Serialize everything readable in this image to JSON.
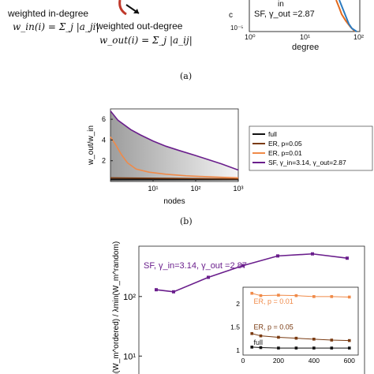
{
  "top": {
    "in_degree_label": "weighted in-degree",
    "in_degree_formula": "w_in(i) = Σ_j |a_ji|",
    "out_degree_label": "weighted out-degree",
    "out_degree_formula": "w_out(i) = Σ_j |a_ij|",
    "inset_legend": "SF, γ_out =2.87",
    "inset_in_fragment": "in",
    "inset_xlabel": "degree",
    "inset_xticks": [
      "10⁰",
      "10¹",
      "10²"
    ],
    "inset_yticks": [
      "10⁻⁵"
    ],
    "inset_ylabel_fragment": "c",
    "panel_label": "(a)"
  },
  "chart_data": [
    {
      "type": "line",
      "ylabel": "w_out/w_in",
      "xlabel": "nodes",
      "xscale": "log",
      "xlim": [
        1,
        1000
      ],
      "ylim": [
        0,
        7
      ],
      "xticks": [
        "10¹",
        "10²",
        "10³"
      ],
      "yticks": [
        "2",
        "4",
        "6"
      ],
      "legend_position": "right",
      "panel_label": "(b)",
      "series": [
        {
          "name": "full",
          "color": "#111111",
          "x": [
            1,
            1000
          ],
          "y": [
            0.2,
            0.2
          ]
        },
        {
          "name": "ER, p=0.05",
          "color": "#7a3b12",
          "x": [
            1,
            1000
          ],
          "y": [
            0.35,
            0.25
          ]
        },
        {
          "name": "ER, p=0.01",
          "color": "#f08a48",
          "x": [
            1,
            1.3,
            1.8,
            2.5,
            4,
            8,
            20,
            60,
            200,
            1000
          ],
          "y": [
            4.3,
            3.6,
            2.6,
            1.8,
            1.2,
            0.9,
            0.7,
            0.55,
            0.45,
            0.35
          ]
        },
        {
          "name": "SF, γ_in=3.14, γ_out=2.87",
          "color": "#6a1e8c",
          "x": [
            1,
            1.5,
            3,
            5,
            10,
            20,
            40,
            100,
            200,
            400,
            1000
          ],
          "y": [
            6.8,
            5.9,
            5.0,
            4.5,
            3.9,
            3.4,
            3.0,
            2.5,
            2.1,
            1.7,
            1.1
          ]
        }
      ]
    },
    {
      "type": "line",
      "ylabel": "λmin(W_m^ordered) / λmin(W_m^random)",
      "yscale": "log",
      "yticks": [
        "10²",
        "10¹"
      ],
      "annotation": "SF, γ_in=3.14,  γ_out =2.87",
      "series": [
        {
          "name": "SF, γ_in=3.14,  γ_out =2.87",
          "color": "#6a1e8c",
          "x": [
            50,
            100,
            200,
            300,
            400,
            500,
            600
          ],
          "y": [
            130,
            120,
            210,
            330,
            480,
            520,
            440
          ]
        }
      ],
      "inset": {
        "xticks": [
          "0",
          "200",
          "400",
          "600"
        ],
        "yticks": [
          "2",
          "1.5",
          "1"
        ],
        "series": [
          {
            "name": "ER, p = 0.01",
            "color": "#f08a48",
            "x": [
              50,
              100,
              200,
              300,
              400,
              500,
              600
            ],
            "y": [
              2.22,
              2.17,
              2.18,
              2.17,
              2.15,
              2.15,
              2.14
            ]
          },
          {
            "name": "ER, p = 0.05",
            "color": "#7a3b12",
            "x": [
              50,
              100,
              200,
              300,
              400,
              500,
              600
            ],
            "y": [
              1.36,
              1.31,
              1.28,
              1.26,
              1.24,
              1.22,
              1.21
            ]
          },
          {
            "name": "full",
            "color": "#111111",
            "x": [
              50,
              100,
              200,
              300,
              400,
              500,
              600
            ],
            "y": [
              1.07,
              1.06,
              1.05,
              1.05,
              1.05,
              1.05,
              1.05
            ]
          }
        ]
      }
    }
  ]
}
